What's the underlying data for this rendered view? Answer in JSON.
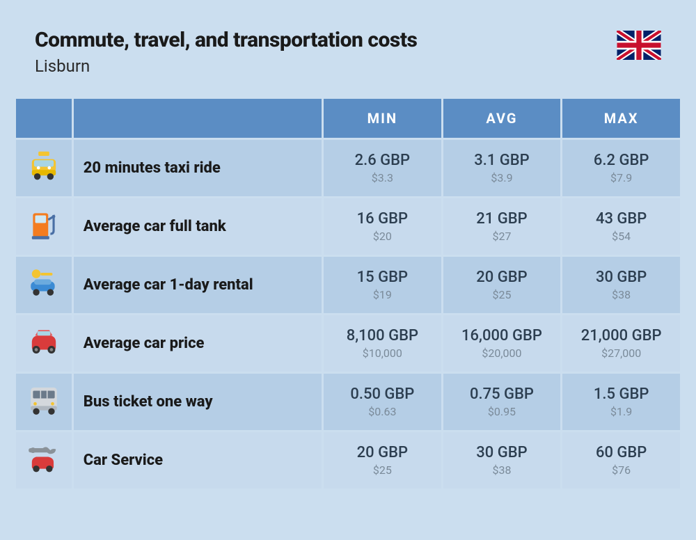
{
  "header": {
    "title": "Commute, travel, and transportation costs",
    "subtitle": "Lisburn"
  },
  "columns": {
    "min": "MIN",
    "avg": "AVG",
    "max": "MAX"
  },
  "table": {
    "header_bg": "#5b8dc4",
    "header_text_color": "#ffffff",
    "row_odd_bg": "#b5cee6",
    "row_even_bg": "#c7daed",
    "primary_text_color": "#2c3e50",
    "secondary_text_color": "#7a8a99",
    "label_color": "#1a1a1a",
    "page_bg": "#cbdeef"
  },
  "rows": [
    {
      "icon": "taxi",
      "label": "20 minutes taxi ride",
      "min": {
        "primary": "2.6 GBP",
        "secondary": "$3.3"
      },
      "avg": {
        "primary": "3.1 GBP",
        "secondary": "$3.9"
      },
      "max": {
        "primary": "6.2 GBP",
        "secondary": "$7.9"
      }
    },
    {
      "icon": "fuel",
      "label": "Average car full tank",
      "min": {
        "primary": "16 GBP",
        "secondary": "$20"
      },
      "avg": {
        "primary": "21 GBP",
        "secondary": "$27"
      },
      "max": {
        "primary": "43 GBP",
        "secondary": "$54"
      }
    },
    {
      "icon": "rental",
      "label": "Average car 1-day rental",
      "min": {
        "primary": "15 GBP",
        "secondary": "$19"
      },
      "avg": {
        "primary": "20 GBP",
        "secondary": "$25"
      },
      "max": {
        "primary": "30 GBP",
        "secondary": "$38"
      }
    },
    {
      "icon": "car",
      "label": "Average car price",
      "min": {
        "primary": "8,100 GBP",
        "secondary": "$10,000"
      },
      "avg": {
        "primary": "16,000 GBP",
        "secondary": "$20,000"
      },
      "max": {
        "primary": "21,000 GBP",
        "secondary": "$27,000"
      }
    },
    {
      "icon": "bus",
      "label": "Bus ticket one way",
      "min": {
        "primary": "0.50 GBP",
        "secondary": "$0.63"
      },
      "avg": {
        "primary": "0.75 GBP",
        "secondary": "$0.95"
      },
      "max": {
        "primary": "1.5 GBP",
        "secondary": "$1.9"
      }
    },
    {
      "icon": "service",
      "label": "Car Service",
      "min": {
        "primary": "20 GBP",
        "secondary": "$25"
      },
      "avg": {
        "primary": "30 GBP",
        "secondary": "$38"
      },
      "max": {
        "primary": "60 GBP",
        "secondary": "$76"
      }
    }
  ]
}
